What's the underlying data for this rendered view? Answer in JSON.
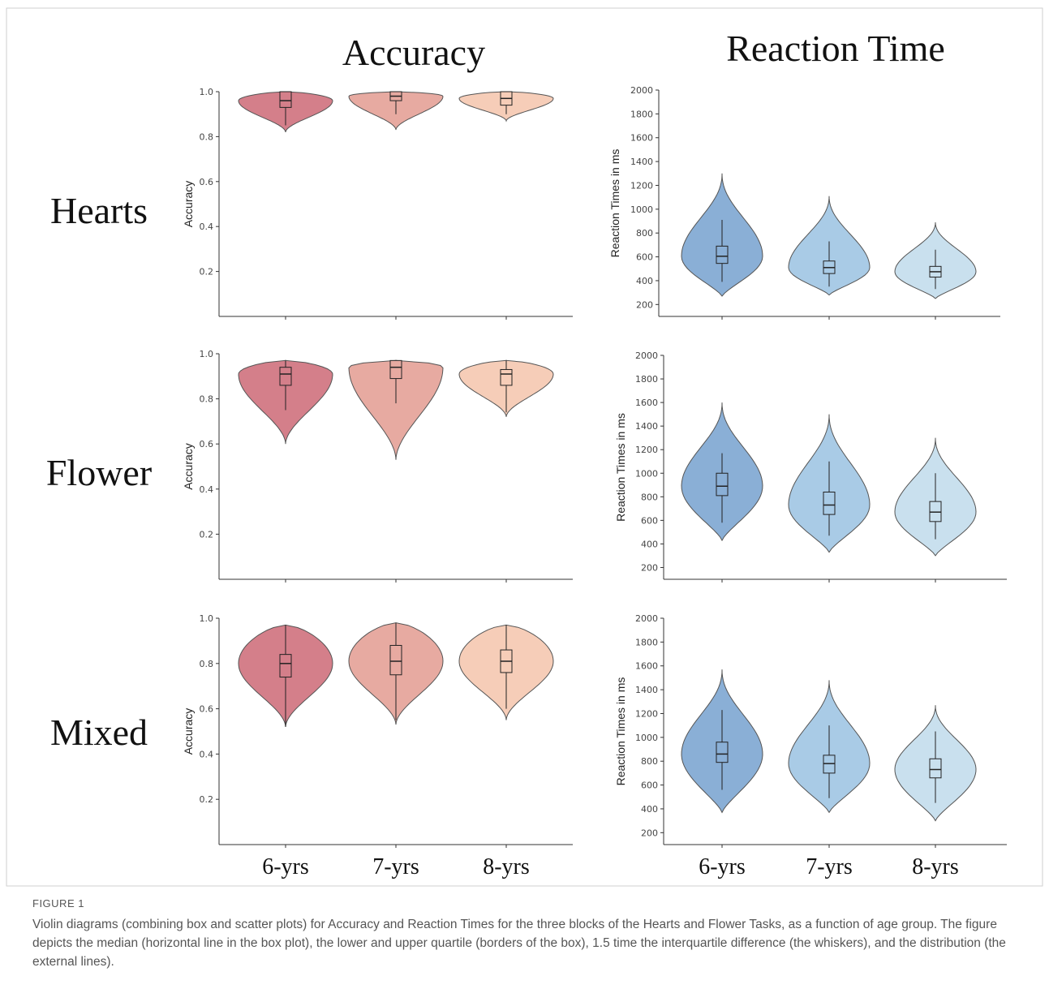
{
  "figure": {
    "column_titles": [
      "Accuracy",
      "Reaction Time"
    ],
    "row_titles": [
      "Hearts",
      "Flower",
      "Mixed"
    ],
    "x_group_labels": [
      "6-yrs",
      "7-yrs",
      "8-yrs"
    ],
    "caption_label": "FIGURE 1",
    "caption_text": "Violin diagrams (combining box and scatter plots) for Accuracy and Reaction Times for the three blocks of the Hearts and Flower Tasks, as a function of age group. The figure depicts the median (horizontal line in the box plot), the lower and upper quartile (borders of the box), 1.5 time the interquartile difference (the whiskers), and the distribution (the external lines)."
  },
  "colors": {
    "accuracy": [
      "#d47f8a",
      "#e7aaa1",
      "#f6cdb8"
    ],
    "reaction_time": [
      "#8aafd6",
      "#a9cbe6",
      "#c9e0ee"
    ]
  },
  "chart_data": [
    {
      "type": "violin",
      "panel": "Hearts - Accuracy",
      "ylabel": "Accuracy",
      "ylim": [
        0,
        1.0
      ],
      "yticks": [
        "0.2",
        "0.4",
        "0.6",
        "0.8",
        "1.0"
      ],
      "categories": [
        "6-yrs",
        "7-yrs",
        "8-yrs"
      ],
      "groups": [
        {
          "name": "6-yrs",
          "min": 0.82,
          "q1": 0.93,
          "median": 0.96,
          "q3": 1.0,
          "whisker_low": 0.85,
          "whisker_high": 1.0,
          "max": 1.0
        },
        {
          "name": "7-yrs",
          "min": 0.83,
          "q1": 0.96,
          "median": 0.98,
          "q3": 1.0,
          "whisker_low": 0.9,
          "whisker_high": 1.0,
          "max": 1.0
        },
        {
          "name": "8-yrs",
          "min": 0.87,
          "q1": 0.94,
          "median": 0.97,
          "q3": 1.0,
          "whisker_low": 0.9,
          "whisker_high": 1.0,
          "max": 1.0
        }
      ]
    },
    {
      "type": "violin",
      "panel": "Hearts - Reaction Time",
      "ylabel": "Reaction Times in ms",
      "ylim": [
        100,
        2000
      ],
      "yticks": [
        "200",
        "400",
        "600",
        "800",
        "1000",
        "1200",
        "1400",
        "1600",
        "1800",
        "2000"
      ],
      "categories": [
        "6-yrs",
        "7-yrs",
        "8-yrs"
      ],
      "groups": [
        {
          "name": "6-yrs",
          "min": 270,
          "q1": 545,
          "median": 605,
          "q3": 690,
          "whisker_low": 390,
          "whisker_high": 910,
          "max": 1300
        },
        {
          "name": "7-yrs",
          "min": 280,
          "q1": 460,
          "median": 510,
          "q3": 565,
          "whisker_low": 350,
          "whisker_high": 730,
          "max": 1110
        },
        {
          "name": "8-yrs",
          "min": 250,
          "q1": 430,
          "median": 475,
          "q3": 520,
          "whisker_low": 330,
          "whisker_high": 660,
          "max": 890
        }
      ]
    },
    {
      "type": "violin",
      "panel": "Flower - Accuracy",
      "ylabel": "Accuracy",
      "ylim": [
        0,
        1.0
      ],
      "yticks": [
        "0.2",
        "0.4",
        "0.6",
        "0.8",
        "1.0"
      ],
      "categories": [
        "6-yrs",
        "7-yrs",
        "8-yrs"
      ],
      "groups": [
        {
          "name": "6-yrs",
          "min": 0.6,
          "q1": 0.86,
          "median": 0.91,
          "q3": 0.94,
          "whisker_low": 0.75,
          "whisker_high": 0.97,
          "max": 0.97
        },
        {
          "name": "7-yrs",
          "min": 0.53,
          "q1": 0.89,
          "median": 0.94,
          "q3": 0.97,
          "whisker_low": 0.78,
          "whisker_high": 0.97,
          "max": 0.97
        },
        {
          "name": "8-yrs",
          "min": 0.72,
          "q1": 0.86,
          "median": 0.91,
          "q3": 0.93,
          "whisker_low": 0.74,
          "whisker_high": 0.97,
          "max": 0.97
        }
      ]
    },
    {
      "type": "violin",
      "panel": "Flower - Reaction Time",
      "ylabel": "Reaction Times in ms",
      "ylim": [
        100,
        2000
      ],
      "yticks": [
        "200",
        "400",
        "600",
        "800",
        "1000",
        "1200",
        "1400",
        "1600",
        "1800",
        "2000"
      ],
      "categories": [
        "6-yrs",
        "7-yrs",
        "8-yrs"
      ],
      "groups": [
        {
          "name": "6-yrs",
          "min": 430,
          "q1": 810,
          "median": 890,
          "q3": 1000,
          "whisker_low": 580,
          "whisker_high": 1170,
          "max": 1600
        },
        {
          "name": "7-yrs",
          "min": 330,
          "q1": 650,
          "median": 730,
          "q3": 840,
          "whisker_low": 470,
          "whisker_high": 1100,
          "max": 1500
        },
        {
          "name": "8-yrs",
          "min": 300,
          "q1": 590,
          "median": 670,
          "q3": 760,
          "whisker_low": 440,
          "whisker_high": 1000,
          "max": 1300
        }
      ]
    },
    {
      "type": "violin",
      "panel": "Mixed - Accuracy",
      "ylabel": "Accuracy",
      "ylim": [
        0,
        1.0
      ],
      "yticks": [
        "0.2",
        "0.4",
        "0.6",
        "0.8",
        "1.0"
      ],
      "categories": [
        "6-yrs",
        "7-yrs",
        "8-yrs"
      ],
      "groups": [
        {
          "name": "6-yrs",
          "min": 0.52,
          "q1": 0.74,
          "median": 0.8,
          "q3": 0.84,
          "whisker_low": 0.52,
          "whisker_high": 0.97,
          "max": 0.97
        },
        {
          "name": "7-yrs",
          "min": 0.53,
          "q1": 0.75,
          "median": 0.81,
          "q3": 0.88,
          "whisker_low": 0.55,
          "whisker_high": 0.98,
          "max": 0.98
        },
        {
          "name": "8-yrs",
          "min": 0.55,
          "q1": 0.76,
          "median": 0.81,
          "q3": 0.86,
          "whisker_low": 0.6,
          "whisker_high": 0.97,
          "max": 0.97
        }
      ]
    },
    {
      "type": "violin",
      "panel": "Mixed - Reaction Time",
      "ylabel": "Reaction Times in ms",
      "ylim": [
        100,
        2000
      ],
      "yticks": [
        "200",
        "400",
        "600",
        "800",
        "1000",
        "1200",
        "1400",
        "1600",
        "1800",
        "2000"
      ],
      "categories": [
        "6-yrs",
        "7-yrs",
        "8-yrs"
      ],
      "groups": [
        {
          "name": "6-yrs",
          "min": 370,
          "q1": 790,
          "median": 860,
          "q3": 960,
          "whisker_low": 560,
          "whisker_high": 1230,
          "max": 1570
        },
        {
          "name": "7-yrs",
          "min": 370,
          "q1": 700,
          "median": 780,
          "q3": 850,
          "whisker_low": 490,
          "whisker_high": 1100,
          "max": 1480
        },
        {
          "name": "8-yrs",
          "min": 300,
          "q1": 660,
          "median": 730,
          "q3": 820,
          "whisker_low": 450,
          "whisker_high": 1050,
          "max": 1270
        }
      ]
    }
  ]
}
